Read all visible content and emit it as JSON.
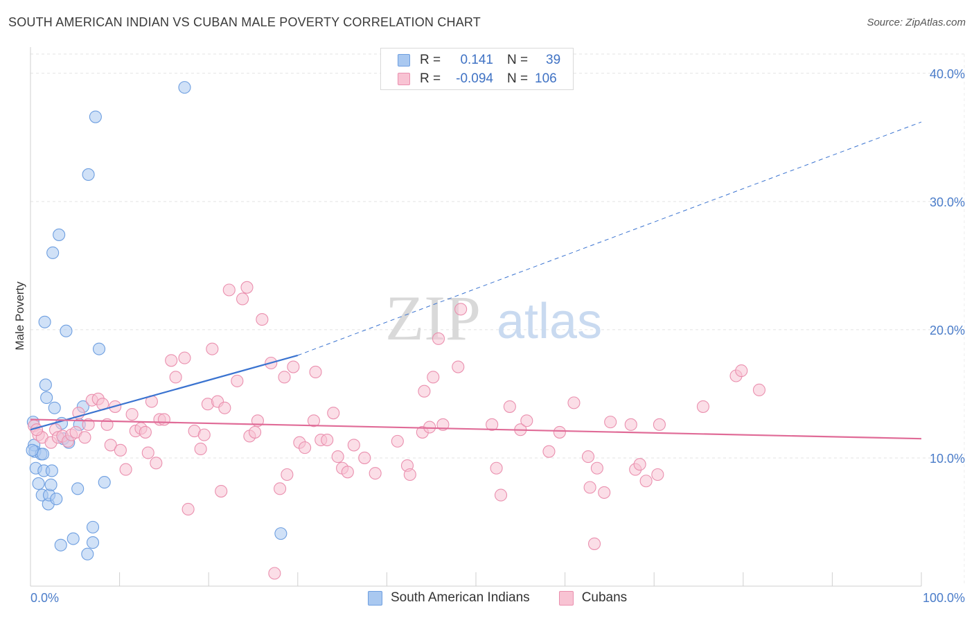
{
  "title": "SOUTH AMERICAN INDIAN VS CUBAN MALE POVERTY CORRELATION CHART",
  "source": "Source: ZipAtlas.com",
  "watermark": {
    "zip": "ZIP",
    "atlas": "atlas"
  },
  "legend": {
    "rows": [
      {
        "r_label": "R =",
        "r_value": "0.141",
        "n_label": "N =",
        "n_value": "39",
        "swatch_fill": "#a9c8f0",
        "swatch_border": "#6d9ee0"
      },
      {
        "r_label": "R =",
        "r_value": "-0.094",
        "n_label": "N =",
        "n_value": "106",
        "swatch_fill": "#f8c3d3",
        "swatch_border": "#ea8fae"
      }
    ]
  },
  "bottom_legend": [
    {
      "label": "South American Indians",
      "swatch_fill": "#a9c8f0",
      "swatch_border": "#6d9ee0"
    },
    {
      "label": "Cubans",
      "swatch_fill": "#f8c3d3",
      "swatch_border": "#ea8fae"
    }
  ],
  "chart_data": {
    "type": "scatter",
    "title": "SOUTH AMERICAN INDIAN VS CUBAN MALE POVERTY CORRELATION CHART",
    "xlabel": "",
    "ylabel": "Male Poverty",
    "xlim": [
      0,
      100
    ],
    "ylim": [
      0,
      41.5
    ],
    "x_tick_labels": [
      "0.0%",
      "100.0%"
    ],
    "y_ticks": [
      10,
      20,
      30,
      40
    ],
    "y_tick_labels": [
      "10.0%",
      "20.0%",
      "30.0%",
      "40.0%"
    ],
    "grid": true,
    "series": [
      {
        "name": "South American Indians",
        "color": "#6d9ee0",
        "fill": "#a9c8f0",
        "trend": {
          "x0": 0,
          "y0": 12.2,
          "x1": 30,
          "y1": 18.0,
          "dash_x1": 100,
          "dash_y1": 36.2,
          "color": "#3a73d0"
        },
        "points": [
          [
            0.3,
            12.8
          ],
          [
            0.4,
            11.0
          ],
          [
            0.5,
            10.5
          ],
          [
            0.6,
            9.2
          ],
          [
            0.9,
            8.0
          ],
          [
            1.2,
            10.3
          ],
          [
            1.3,
            7.1
          ],
          [
            1.4,
            10.3
          ],
          [
            1.5,
            9.0
          ],
          [
            1.6,
            20.6
          ],
          [
            1.7,
            15.7
          ],
          [
            1.8,
            14.7
          ],
          [
            2.0,
            6.4
          ],
          [
            2.1,
            7.1
          ],
          [
            2.3,
            7.9
          ],
          [
            2.4,
            9.0
          ],
          [
            2.7,
            13.9
          ],
          [
            2.9,
            6.8
          ],
          [
            3.2,
            27.4
          ],
          [
            3.4,
            3.2
          ],
          [
            3.5,
            12.7
          ],
          [
            3.7,
            11.5
          ],
          [
            2.5,
            26.0
          ],
          [
            4.0,
            19.9
          ],
          [
            4.3,
            11.2
          ],
          [
            4.8,
            3.7
          ],
          [
            5.3,
            7.6
          ],
          [
            5.5,
            12.6
          ],
          [
            5.9,
            14.0
          ],
          [
            6.4,
            2.5
          ],
          [
            6.5,
            32.1
          ],
          [
            7.0,
            4.6
          ],
          [
            7.0,
            3.4
          ],
          [
            7.3,
            36.6
          ],
          [
            7.7,
            18.5
          ],
          [
            8.3,
            8.1
          ],
          [
            17.3,
            38.9
          ],
          [
            28.1,
            4.1
          ],
          [
            0.2,
            10.6
          ]
        ]
      },
      {
        "name": "Cubans",
        "color": "#ea8fae",
        "fill": "#f8c3d3",
        "trend": {
          "x0": 0,
          "y0": 13.0,
          "x1": 100,
          "y1": 11.5,
          "color": "#e06b97"
        },
        "points": [
          [
            0.4,
            12.5
          ],
          [
            0.9,
            11.8
          ],
          [
            1.3,
            11.6
          ],
          [
            2.3,
            11.2
          ],
          [
            2.8,
            12.2
          ],
          [
            3.1,
            11.6
          ],
          [
            3.6,
            11.7
          ],
          [
            4.2,
            11.3
          ],
          [
            4.6,
            11.8
          ],
          [
            5.1,
            12.0
          ],
          [
            5.4,
            13.5
          ],
          [
            6.1,
            11.6
          ],
          [
            6.5,
            12.6
          ],
          [
            6.9,
            14.5
          ],
          [
            7.6,
            14.6
          ],
          [
            8.1,
            14.2
          ],
          [
            8.6,
            12.6
          ],
          [
            9.0,
            11.0
          ],
          [
            9.5,
            14.0
          ],
          [
            10.1,
            10.6
          ],
          [
            10.7,
            9.1
          ],
          [
            11.4,
            13.4
          ],
          [
            11.8,
            12.1
          ],
          [
            12.4,
            12.3
          ],
          [
            12.9,
            12.0
          ],
          [
            13.2,
            10.4
          ],
          [
            13.6,
            14.4
          ],
          [
            14.1,
            9.6
          ],
          [
            14.5,
            13.0
          ],
          [
            15.0,
            13.0
          ],
          [
            15.8,
            17.6
          ],
          [
            16.3,
            16.3
          ],
          [
            17.3,
            17.8
          ],
          [
            17.7,
            6.0
          ],
          [
            18.4,
            12.1
          ],
          [
            19.1,
            10.7
          ],
          [
            19.5,
            11.8
          ],
          [
            19.9,
            14.2
          ],
          [
            20.4,
            18.5
          ],
          [
            21.0,
            14.4
          ],
          [
            21.4,
            7.4
          ],
          [
            21.8,
            13.9
          ],
          [
            22.3,
            23.1
          ],
          [
            23.2,
            16.0
          ],
          [
            23.8,
            22.4
          ],
          [
            24.3,
            23.3
          ],
          [
            24.6,
            11.7
          ],
          [
            25.2,
            12.0
          ],
          [
            25.5,
            12.9
          ],
          [
            26.0,
            20.8
          ],
          [
            27.0,
            17.4
          ],
          [
            27.4,
            1.0
          ],
          [
            28.0,
            7.6
          ],
          [
            28.5,
            16.3
          ],
          [
            28.8,
            8.7
          ],
          [
            29.5,
            17.1
          ],
          [
            30.2,
            11.2
          ],
          [
            30.8,
            10.8
          ],
          [
            31.8,
            12.9
          ],
          [
            32.0,
            16.7
          ],
          [
            32.6,
            11.4
          ],
          [
            33.3,
            11.4
          ],
          [
            34.0,
            13.5
          ],
          [
            34.5,
            10.1
          ],
          [
            35.0,
            9.2
          ],
          [
            35.6,
            8.9
          ],
          [
            36.3,
            11.0
          ],
          [
            37.5,
            10.0
          ],
          [
            38.7,
            8.8
          ],
          [
            41.2,
            11.3
          ],
          [
            42.3,
            9.4
          ],
          [
            42.6,
            8.7
          ],
          [
            44.0,
            12.0
          ],
          [
            44.2,
            15.2
          ],
          [
            44.8,
            12.4
          ],
          [
            45.2,
            16.3
          ],
          [
            45.8,
            19.3
          ],
          [
            46.3,
            12.6
          ],
          [
            48.3,
            21.6
          ],
          [
            48.0,
            17.1
          ],
          [
            51.8,
            12.6
          ],
          [
            52.3,
            9.2
          ],
          [
            52.8,
            7.1
          ],
          [
            53.8,
            14.0
          ],
          [
            55.0,
            12.2
          ],
          [
            55.7,
            12.9
          ],
          [
            58.2,
            10.5
          ],
          [
            59.4,
            12.0
          ],
          [
            61.0,
            14.3
          ],
          [
            62.6,
            10.1
          ],
          [
            62.8,
            7.7
          ],
          [
            63.6,
            9.2
          ],
          [
            63.3,
            3.3
          ],
          [
            64.4,
            7.3
          ],
          [
            65.1,
            12.8
          ],
          [
            67.4,
            12.6
          ],
          [
            67.9,
            9.1
          ],
          [
            68.4,
            9.5
          ],
          [
            69.1,
            8.2
          ],
          [
            70.4,
            8.7
          ],
          [
            70.6,
            12.6
          ],
          [
            75.5,
            14.0
          ],
          [
            79.2,
            16.4
          ],
          [
            79.8,
            16.8
          ],
          [
            81.8,
            15.3
          ],
          [
            0.7,
            12.2
          ]
        ]
      }
    ]
  }
}
